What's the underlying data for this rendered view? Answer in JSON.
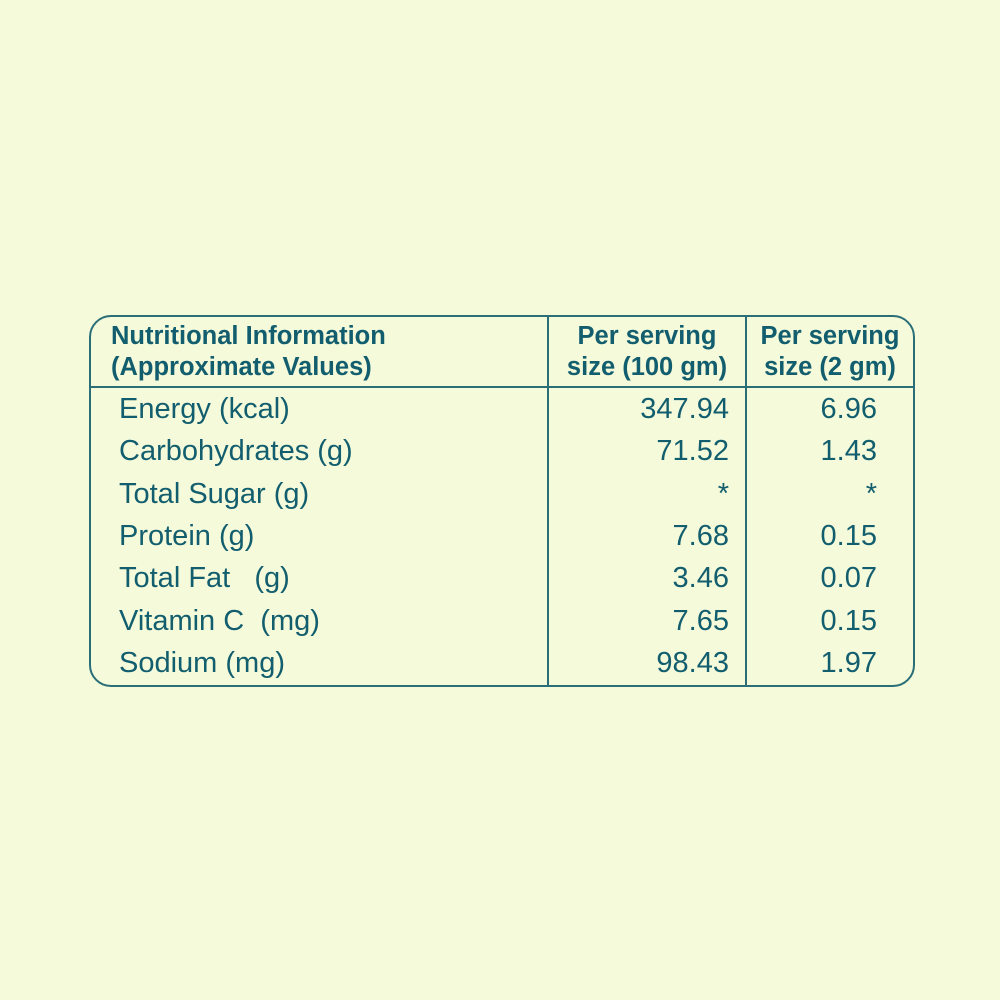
{
  "page": {
    "background_color": "#f4fada",
    "text_color": "#135e6e",
    "border_color": "#2a6e78"
  },
  "table": {
    "header": {
      "col1": "Nutritional Information\n(Approximate Values)",
      "col2": "Per serving\nsize (100 gm)",
      "col3": "Per serving\nsize (2 gm)"
    },
    "rows": [
      {
        "label": "Energy (kcal)",
        "per_100gm": "347.94",
        "per_2gm": "6.96"
      },
      {
        "label": "Carbohydrates (g)",
        "per_100gm": "71.52",
        "per_2gm": "1.43"
      },
      {
        "label": "Total Sugar (g)",
        "per_100gm": "*",
        "per_2gm": "*"
      },
      {
        "label": "Protein (g)",
        "per_100gm": "7.68",
        "per_2gm": "0.15"
      },
      {
        "label": "Total Fat   (g)",
        "per_100gm": "3.46",
        "per_2gm": "0.07"
      },
      {
        "label": "Vitamin C  (mg)",
        "per_100gm": "7.65",
        "per_2gm": "0.15"
      },
      {
        "label": "Sodium (mg)",
        "per_100gm": "98.43",
        "per_2gm": "1.97"
      }
    ]
  }
}
